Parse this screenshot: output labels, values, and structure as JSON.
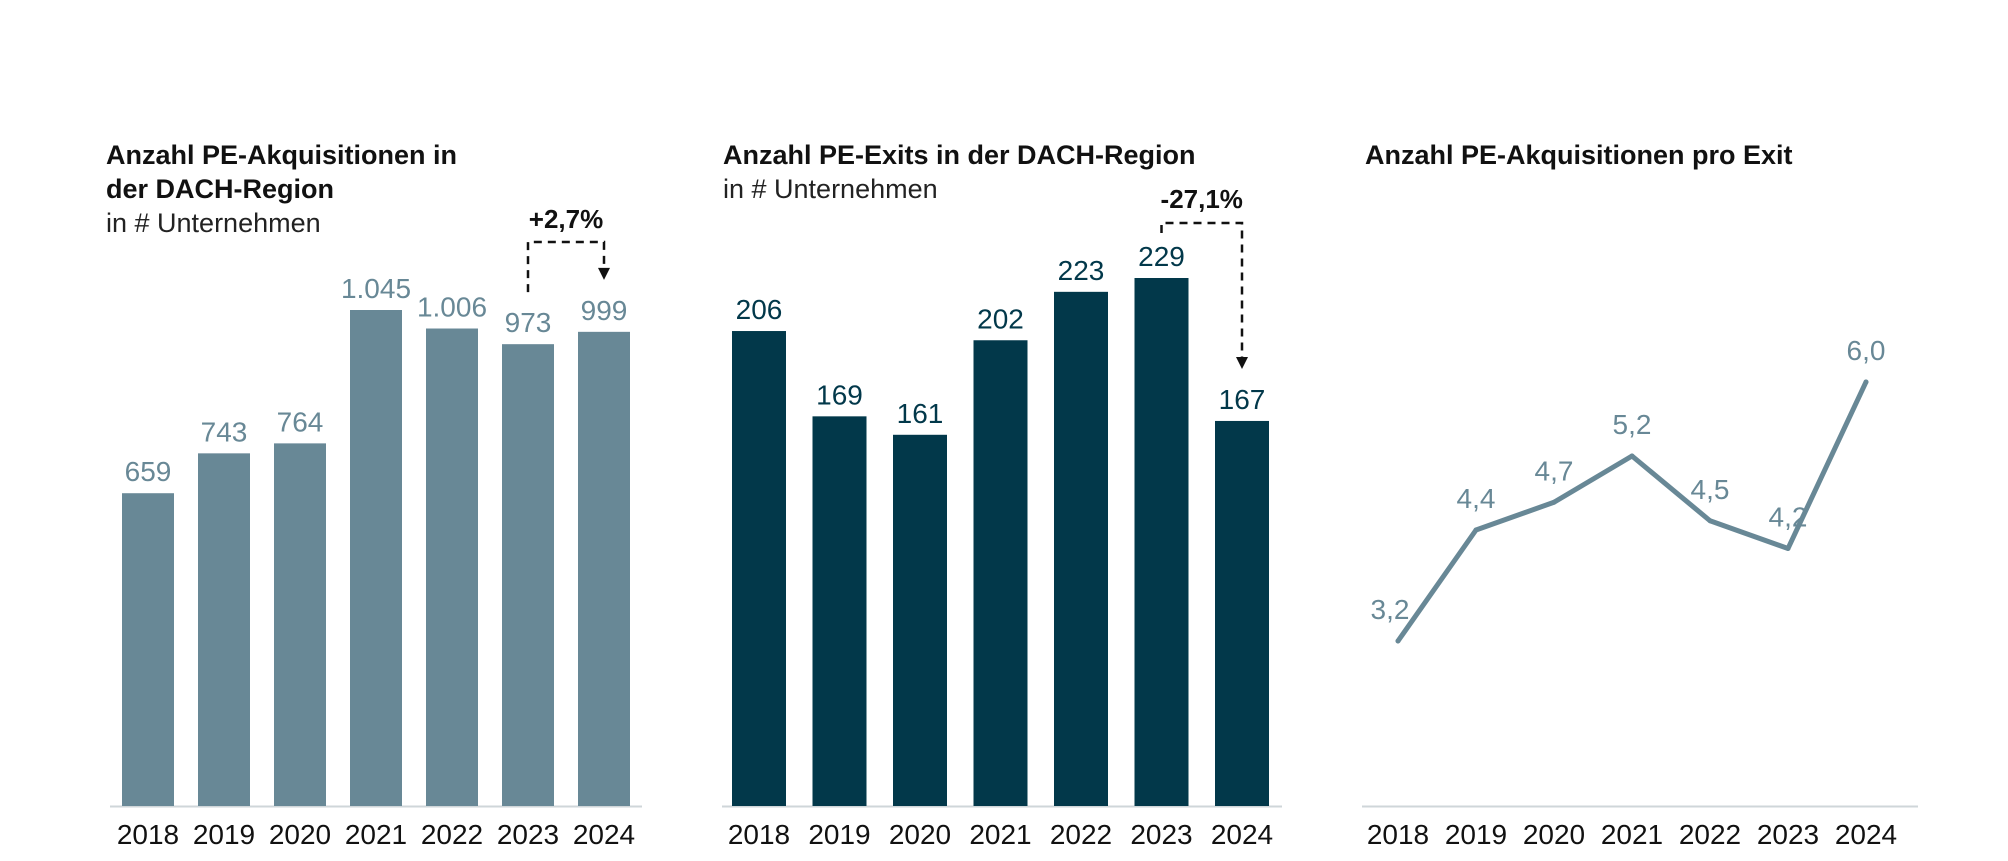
{
  "colors": {
    "grey": "#688896",
    "dark": "#02384A",
    "text": "#111111",
    "axis": "#cfd6d9"
  },
  "chart_data": [
    {
      "type": "bar",
      "title": "Anzahl PE-Akquisitionen in der DACH-Region",
      "title_lines": [
        "Anzahl PE-Akquisitionen in",
        "der DACH-Region"
      ],
      "subtitle": "in # Unternehmen",
      "categories": [
        "2018",
        "2019",
        "2020",
        "2021",
        "2022",
        "2023",
        "2024"
      ],
      "values": [
        659,
        743,
        764,
        1045,
        1006,
        973,
        999
      ],
      "value_labels": [
        "659",
        "743",
        "764",
        "1.045",
        "1.006",
        "973",
        "999"
      ],
      "ylim": [
        0,
        1045
      ],
      "color": "#688896",
      "annotation": {
        "label": "+2,7%",
        "from": "2023",
        "to": "2024"
      }
    },
    {
      "type": "bar",
      "title": "Anzahl PE-Exits in der DACH-Region",
      "subtitle": "in # Unternehmen",
      "categories": [
        "2018",
        "2019",
        "2020",
        "2021",
        "2022",
        "2023",
        "2024"
      ],
      "values": [
        206,
        169,
        161,
        202,
        223,
        229,
        167
      ],
      "value_labels": [
        "206",
        "169",
        "161",
        "202",
        "223",
        "229",
        "167"
      ],
      "ylim": [
        0,
        229
      ],
      "color": "#02384A",
      "annotation": {
        "label": "-27,1%",
        "from": "2023",
        "to": "2024"
      }
    },
    {
      "type": "line",
      "title": "Anzahl PE-Akquisitionen pro Exit",
      "categories": [
        "2018",
        "2019",
        "2020",
        "2021",
        "2022",
        "2023",
        "2024"
      ],
      "values": [
        3.2,
        4.4,
        4.7,
        5.2,
        4.5,
        4.2,
        6.0
      ],
      "value_labels": [
        "3,2",
        "4,4",
        "4,7",
        "5,2",
        "4,5",
        "4,2",
        "6,0"
      ],
      "ylim": [
        0,
        6.5
      ],
      "color": "#688896"
    }
  ]
}
